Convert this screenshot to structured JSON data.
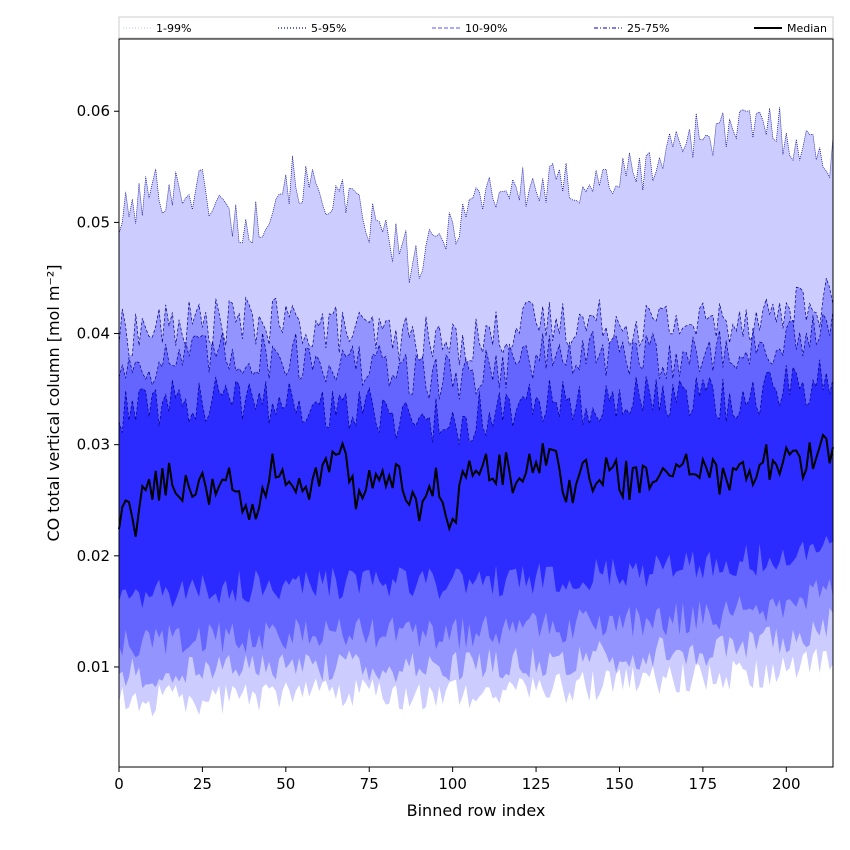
{
  "chart_data": {
    "type": "area",
    "xlabel": "Binned row index",
    "ylabel": "CO total vertical column [mol m⁻²]",
    "xlim": [
      0,
      214
    ],
    "ylim": [
      0.001,
      0.0665
    ],
    "x_ticks": [
      0,
      25,
      50,
      75,
      100,
      125,
      150,
      175,
      200
    ],
    "y_ticks": [
      0.01,
      0.02,
      0.03,
      0.04,
      0.05,
      0.06
    ],
    "grid": false,
    "legend_position": "top",
    "n_points": 215,
    "legend": [
      {
        "label": "1-99%",
        "color": "#ccccff",
        "style": "dotted"
      },
      {
        "label": "5-95%",
        "color": "#00008b",
        "style": "dotted"
      },
      {
        "label": "10-90%",
        "color": "#7777ff",
        "style": "dashed"
      },
      {
        "label": "25-75%",
        "color": "#3333cc",
        "style": "dashdot"
      },
      {
        "label": "Median",
        "color": "#000000",
        "style": "solid"
      }
    ],
    "bands": [
      {
        "name": "1-99%",
        "fill": "#ccccff",
        "edge": "#00008b",
        "upper": {
          "x": [
            0,
            10,
            25,
            39,
            50,
            66,
            75,
            90,
            100,
            110,
            125,
            150,
            160,
            170,
            180,
            195,
            205,
            214
          ],
          "y": [
            0.05,
            0.053,
            0.053,
            0.049,
            0.054,
            0.052,
            0.05,
            0.046,
            0.05,
            0.053,
            0.053,
            0.054,
            0.055,
            0.058,
            0.058,
            0.059,
            0.057,
            0.056
          ]
        },
        "lower": {
          "x": [
            0,
            25,
            50,
            75,
            100,
            125,
            150,
            175,
            200,
            214
          ],
          "y": [
            0.007,
            0.007,
            0.0075,
            0.0075,
            0.0075,
            0.008,
            0.0085,
            0.009,
            0.0095,
            0.011
          ]
        }
      },
      {
        "name": "5-95%",
        "fill": "#9494ff",
        "edge": "#00008b",
        "upper": {
          "x": [
            0,
            25,
            50,
            75,
            100,
            125,
            150,
            175,
            200,
            214
          ],
          "y": [
            0.04,
            0.041,
            0.041,
            0.04,
            0.039,
            0.041,
            0.041,
            0.041,
            0.042,
            0.043
          ]
        },
        "lower": {
          "x": [
            0,
            25,
            50,
            75,
            100,
            125,
            150,
            175,
            200,
            214
          ],
          "y": [
            0.0095,
            0.0095,
            0.01,
            0.01,
            0.01,
            0.0105,
            0.011,
            0.0115,
            0.0125,
            0.014
          ]
        }
      },
      {
        "name": "10-90%",
        "fill": "#6464ff",
        "edge": "#00008b",
        "upper": {
          "x": [
            0,
            25,
            50,
            75,
            100,
            125,
            150,
            175,
            200,
            214
          ],
          "y": [
            0.037,
            0.038,
            0.038,
            0.037,
            0.036,
            0.038,
            0.038,
            0.038,
            0.039,
            0.04
          ]
        },
        "lower": {
          "x": [
            0,
            25,
            50,
            75,
            100,
            125,
            150,
            175,
            200,
            214
          ],
          "y": [
            0.012,
            0.0125,
            0.013,
            0.013,
            0.013,
            0.0135,
            0.014,
            0.0145,
            0.0155,
            0.017
          ]
        }
      },
      {
        "name": "25-75%",
        "fill": "#2b2bff",
        "edge": "#00008b",
        "upper": {
          "x": [
            0,
            25,
            50,
            75,
            100,
            125,
            150,
            175,
            200,
            214
          ],
          "y": [
            0.033,
            0.034,
            0.034,
            0.033,
            0.032,
            0.034,
            0.034,
            0.034,
            0.035,
            0.036
          ]
        },
        "lower": {
          "x": [
            0,
            25,
            50,
            75,
            100,
            125,
            150,
            175,
            200,
            214
          ],
          "y": [
            0.016,
            0.017,
            0.0175,
            0.0175,
            0.0175,
            0.018,
            0.0185,
            0.019,
            0.02,
            0.0205
          ]
        }
      }
    ],
    "median": {
      "name": "Median",
      "color": "#000000",
      "x": [
        0,
        2,
        5,
        7,
        10,
        15,
        20,
        25,
        30,
        35,
        39,
        45,
        50,
        55,
        60,
        66,
        70,
        75,
        80,
        85,
        90,
        95,
        100,
        105,
        110,
        115,
        120,
        125,
        130,
        135,
        140,
        145,
        150,
        155,
        160,
        165,
        170,
        175,
        180,
        185,
        190,
        195,
        200,
        205,
        210,
        214
      ],
      "y": [
        0.022,
        0.024,
        0.023,
        0.0255,
        0.0265,
        0.027,
        0.0265,
        0.026,
        0.0265,
        0.027,
        0.0225,
        0.0275,
        0.028,
        0.0265,
        0.027,
        0.03,
        0.0255,
        0.026,
        0.0265,
        0.027,
        0.0225,
        0.027,
        0.0235,
        0.0275,
        0.0285,
        0.028,
        0.0265,
        0.0285,
        0.029,
        0.0255,
        0.027,
        0.0275,
        0.027,
        0.0265,
        0.027,
        0.0275,
        0.028,
        0.0275,
        0.027,
        0.028,
        0.0275,
        0.0285,
        0.028,
        0.0285,
        0.029,
        0.03
      ]
    }
  }
}
